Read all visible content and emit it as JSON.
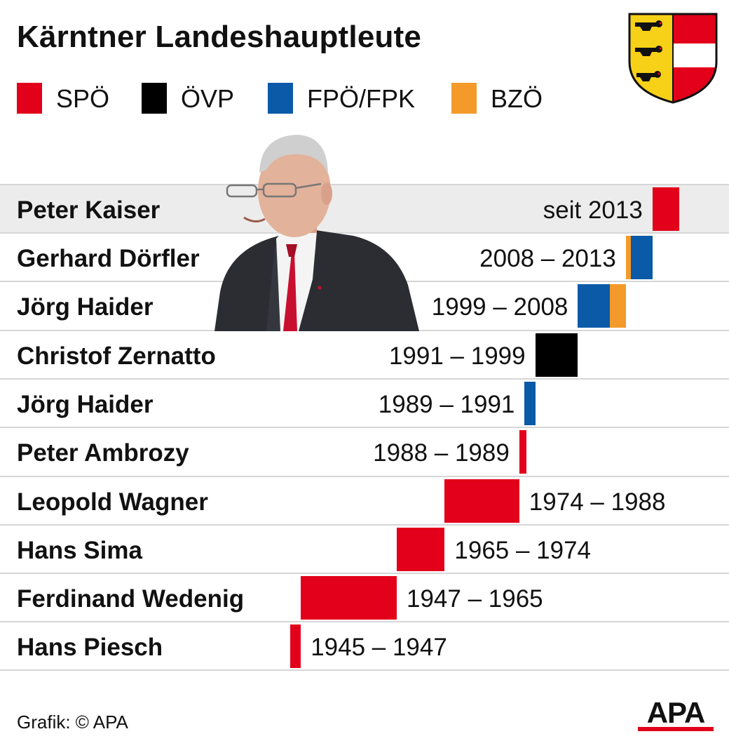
{
  "title": "Kärntner Landeshauptleute",
  "legend": [
    {
      "key": "SPO",
      "label": "SPÖ",
      "color": "#e2001a"
    },
    {
      "key": "OVP",
      "label": "ÖVP",
      "color": "#000000"
    },
    {
      "key": "FPO",
      "label": "FPÖ/FPK",
      "color": "#0a5aa8"
    },
    {
      "key": "BZO",
      "label": "BZÖ",
      "color": "#f39a2b"
    }
  ],
  "chart_data": {
    "type": "bar",
    "title": "Kärntner Landeshauptleute",
    "rows": [
      {
        "name": "Peter Kaiser",
        "period": "seit 2013",
        "start": 2013,
        "end": 2018,
        "label_side": "left",
        "highlight": true,
        "segments": [
          {
            "party": "SPÖ",
            "start": 2013,
            "end": 2018
          }
        ]
      },
      {
        "name": "Gerhard Dörfler",
        "period": "2008 – 2013",
        "start": 2008,
        "end": 2013,
        "label_side": "left",
        "segments": [
          {
            "party": "BZÖ",
            "start": 2008,
            "end": 2009
          },
          {
            "party": "FPÖ/FPK",
            "start": 2009,
            "end": 2013
          }
        ]
      },
      {
        "name": "Jörg Haider",
        "period": "1999 – 2008",
        "start": 1999,
        "end": 2008,
        "label_side": "left",
        "segments": [
          {
            "party": "FPÖ/FPK",
            "start": 1999,
            "end": 2005
          },
          {
            "party": "BZÖ",
            "start": 2005,
            "end": 2008
          }
        ]
      },
      {
        "name": "Christof Zernatto",
        "period": "1991 – 1999",
        "start": 1991,
        "end": 1999,
        "label_side": "left",
        "segments": [
          {
            "party": "ÖVP",
            "start": 1991,
            "end": 1999
          }
        ]
      },
      {
        "name": "Jörg Haider",
        "period": "1989 – 1991",
        "start": 1989,
        "end": 1991,
        "label_side": "left",
        "segments": [
          {
            "party": "FPÖ/FPK",
            "start": 1989,
            "end": 1991
          }
        ]
      },
      {
        "name": "Peter Ambrozy",
        "period": "1988 – 1989",
        "start": 1988,
        "end": 1989,
        "label_side": "left",
        "segments": [
          {
            "party": "SPÖ",
            "start": 1988,
            "end": 1989
          }
        ]
      },
      {
        "name": "Leopold Wagner",
        "period": "1974 – 1988",
        "start": 1974,
        "end": 1988,
        "label_side": "right",
        "segments": [
          {
            "party": "SPÖ",
            "start": 1974,
            "end": 1988
          }
        ]
      },
      {
        "name": "Hans Sima",
        "period": "1965 – 1974",
        "start": 1965,
        "end": 1974,
        "label_side": "right",
        "segments": [
          {
            "party": "SPÖ",
            "start": 1965,
            "end": 1974
          }
        ]
      },
      {
        "name": "Ferdinand Wedenig",
        "period": "1947 – 1965",
        "start": 1947,
        "end": 1965,
        "label_side": "right",
        "segments": [
          {
            "party": "SPÖ",
            "start": 1947,
            "end": 1965
          }
        ]
      },
      {
        "name": "Hans Piesch",
        "period": "1945 – 1947",
        "start": 1945,
        "end": 1947,
        "label_side": "right",
        "segments": [
          {
            "party": "SPÖ",
            "start": 1945,
            "end": 1947
          }
        ]
      }
    ],
    "xlim": [
      1945,
      2018
    ],
    "grid": false,
    "legend_position": "top-left"
  },
  "footer": {
    "credit": "Grafik: © APA",
    "logo": "APA"
  }
}
